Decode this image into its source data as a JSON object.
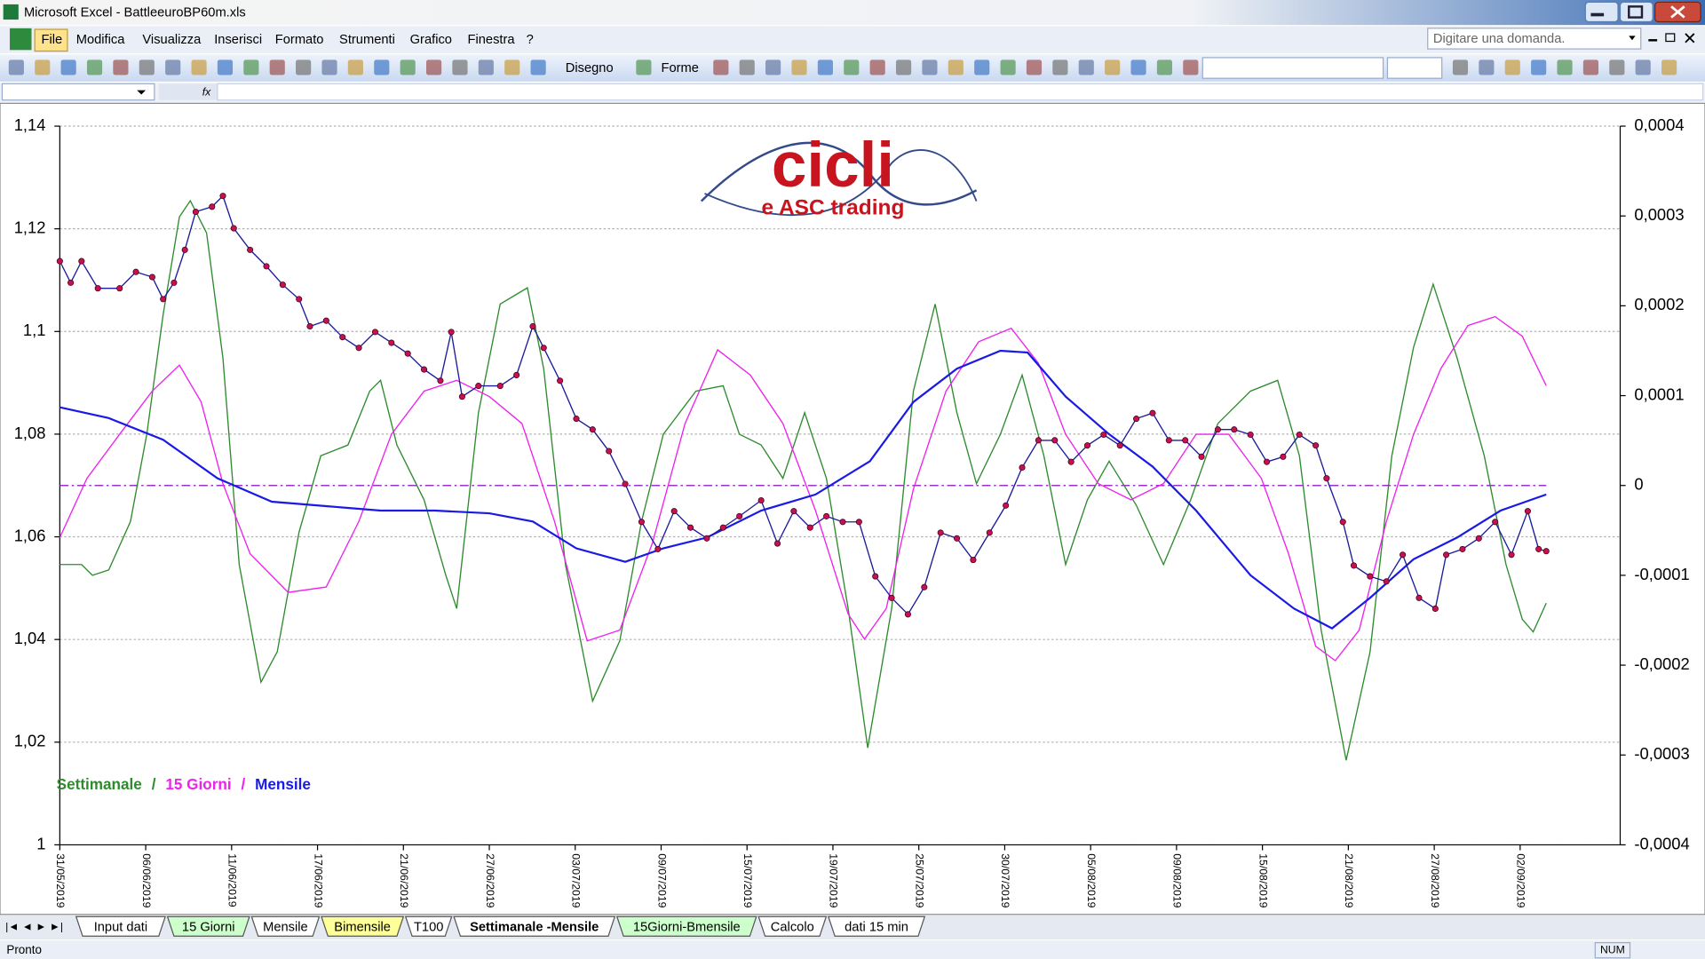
{
  "window": {
    "title": "Microsoft Excel - BattleeuroBP60m.xls"
  },
  "menu": [
    "File",
    "Modifica",
    "Visualizza",
    "Inserisci",
    "Formato",
    "Strumenti",
    "Grafico",
    "Finestra",
    "?"
  ],
  "help_box": "Digitare una domanda.",
  "toolbar": {
    "drawing": "Disegno",
    "shapes": "Forme"
  },
  "sheet_tabs": [
    {
      "name": "Input dati",
      "color": "#ffffff"
    },
    {
      "name": "15 Giorni",
      "color": "#ccffcc"
    },
    {
      "name": "Mensile",
      "color": "#ffffff"
    },
    {
      "name": "Bimensile",
      "color": "#ffff99"
    },
    {
      "name": "T100",
      "color": "#ffffff"
    },
    {
      "name": "Settimanale -Mensile",
      "color": "#ffffff",
      "active": true
    },
    {
      "name": "15Giorni-Bmensile",
      "color": "#ccffcc"
    },
    {
      "name": "Calcolo",
      "color": "#ffffff"
    },
    {
      "name": "dati 15 min",
      "color": "#ffffff"
    }
  ],
  "status": {
    "left": "Pronto",
    "num": "NUM"
  },
  "chart_data": {
    "type": "line",
    "logo": {
      "main": "cicli",
      "sub": "e ASC trading"
    },
    "legend_separator": "/",
    "xlim": [
      0,
      1435
    ],
    "xticks": [
      {
        "value": 0,
        "label": "31/05/2019"
      },
      {
        "value": 79,
        "label": "06/06/2019"
      },
      {
        "value": 158,
        "label": "11/06/2019"
      },
      {
        "value": 237,
        "label": "17/06/2019"
      },
      {
        "value": 316,
        "label": "21/06/2019"
      },
      {
        "value": 395,
        "label": "27/06/2019"
      },
      {
        "value": 474,
        "label": "03/07/2019"
      },
      {
        "value": 553,
        "label": "09/07/2019"
      },
      {
        "value": 632,
        "label": "15/07/2019"
      },
      {
        "value": 711,
        "label": "19/07/2019"
      },
      {
        "value": 790,
        "label": "25/07/2019"
      },
      {
        "value": 869,
        "label": "30/07/2019"
      },
      {
        "value": 948,
        "label": "05/08/2019"
      },
      {
        "value": 1027,
        "label": "09/08/2019"
      },
      {
        "value": 1106,
        "label": "15/08/2019"
      },
      {
        "value": 1185,
        "label": "21/08/2019"
      },
      {
        "value": 1264,
        "label": "27/08/2019"
      },
      {
        "value": 1343,
        "label": "02/09/2019"
      }
    ],
    "ylim": [
      1,
      1.14
    ],
    "yticks": [
      {
        "value": 1,
        "label": "1"
      },
      {
        "value": 1.02,
        "label": "1,02"
      },
      {
        "value": 1.04,
        "label": "1,04"
      },
      {
        "value": 1.06,
        "label": "1,06"
      },
      {
        "value": 1.08,
        "label": "1,08"
      },
      {
        "value": 1.1,
        "label": "1,1"
      },
      {
        "value": 1.12,
        "label": "1,12"
      },
      {
        "value": 1.14,
        "label": "1,14"
      }
    ],
    "y2lim": [
      -0.0004,
      0.0004
    ],
    "y2ticks": [
      {
        "value": -0.0004,
        "label": "-0,0004"
      },
      {
        "value": -0.0003,
        "label": "-0,0003"
      },
      {
        "value": -0.0002,
        "label": "-0,0002"
      },
      {
        "value": -0.0001,
        "label": "-0,0001"
      },
      {
        "value": 0,
        "label": "0"
      },
      {
        "value": 0.0001,
        "label": "0,0001"
      },
      {
        "value": 0.0002,
        "label": "0,0002"
      },
      {
        "value": 0.0003,
        "label": "0,0003"
      },
      {
        "value": 0.0004,
        "label": "0,0004"
      }
    ],
    "grid": true,
    "reference_line": {
      "axis": "y2",
      "value": 0,
      "color": "#9933cc"
    },
    "series": [
      {
        "color": "#1c1c9c",
        "marker_color": "#c8104e",
        "markers": true,
        "x": [
          0,
          10,
          20,
          35,
          55,
          70,
          85,
          95,
          105,
          115,
          125,
          140,
          150,
          160,
          175,
          190,
          205,
          220,
          230,
          245,
          260,
          275,
          290,
          305,
          320,
          335,
          350,
          360,
          370,
          385,
          405,
          420,
          435,
          445,
          460,
          475,
          490,
          505,
          520,
          535,
          550,
          565,
          580,
          595,
          610,
          625,
          645,
          660,
          675,
          690,
          705,
          720,
          735,
          750,
          765,
          780,
          795,
          810,
          825,
          840,
          855,
          870,
          885,
          900,
          915,
          930,
          945,
          960,
          975,
          990,
          1005,
          1020,
          1035,
          1050,
          1065,
          1080,
          1095,
          1110,
          1125,
          1140,
          1155,
          1165,
          1180,
          1190,
          1205,
          1220,
          1235,
          1250,
          1265,
          1275,
          1290,
          1305,
          1320,
          1335,
          1350,
          1360,
          1367
        ],
        "values": [
          1.1137,
          1.1095,
          1.1137,
          1.1084,
          1.1084,
          1.1116,
          1.1106,
          1.1063,
          1.1095,
          1.1159,
          1.1233,
          1.1243,
          1.1264,
          1.1201,
          1.1159,
          1.1127,
          1.1091,
          1.1063,
          1.101,
          1.1021,
          1.0989,
          1.0968,
          1.0999,
          1.0978,
          1.0957,
          1.0926,
          1.0904,
          1.0999,
          1.0873,
          1.0894,
          1.0894,
          1.0915,
          1.101,
          1.0968,
          1.0904,
          1.083,
          1.0809,
          1.0767,
          1.0703,
          1.0629,
          1.0576,
          1.065,
          1.0618,
          1.0597,
          1.0618,
          1.064,
          1.0671,
          1.0587,
          1.065,
          1.0618,
          1.064,
          1.0629,
          1.0629,
          1.0523,
          1.0481,
          1.0449,
          1.0502,
          1.0608,
          1.0597,
          1.0555,
          1.0608,
          1.0661,
          1.0735,
          1.0788,
          1.0788,
          1.0746,
          1.0778,
          1.0799,
          1.0778,
          1.083,
          1.0841,
          1.0788,
          1.0788,
          1.0756,
          1.0809,
          1.0809,
          1.0799,
          1.0746,
          1.0756,
          1.0799,
          1.0778,
          1.0714,
          1.0629,
          1.0544,
          1.0523,
          1.0513,
          1.0565,
          1.0481,
          1.046,
          1.0565,
          1.0576,
          1.0597,
          1.0629,
          1.0565,
          1.065,
          1.0576,
          1.0572
        ]
      },
      {
        "name": "Settimanale",
        "color": "#2e8b2e",
        "axis": "y2",
        "x": [
          0,
          20,
          30,
          45,
          65,
          80,
          95,
          110,
          120,
          135,
          150,
          165,
          185,
          200,
          220,
          240,
          265,
          285,
          295,
          310,
          335,
          355,
          365,
          385,
          405,
          430,
          445,
          465,
          490,
          515,
          535,
          555,
          585,
          610,
          625,
          645,
          665,
          685,
          705,
          725,
          743,
          765,
          785,
          805,
          825,
          843,
          865,
          885,
          905,
          925,
          945,
          965,
          990,
          1015,
          1040,
          1065,
          1095,
          1120,
          1140,
          1160,
          1183,
          1205,
          1225,
          1245,
          1263,
          1285,
          1310,
          1330,
          1345,
          1355,
          1367
        ],
        "values": [
          -8.8e-05,
          -8.8e-05,
          -0.0001,
          -9.4e-05,
          -4e-05,
          5.7e-05,
          0.00019,
          0.000299,
          0.000317,
          0.000281,
          0.000142,
          -8.8e-05,
          -0.000219,
          -0.000185,
          -5.2e-05,
          3.3e-05,
          4.5e-05,
          0.000105,
          0.000117,
          4.5e-05,
          -1.6e-05,
          -0.0001,
          -0.000137,
          8.1e-05,
          0.000202,
          0.00022,
          0.00013,
          -8.8e-05,
          -0.00024,
          -0.000173,
          -4e-05,
          5.7e-05,
          0.000105,
          0.000111,
          5.7e-05,
          4.5e-05,
          8e-06,
          8.1e-05,
          8e-06,
          -0.000137,
          -0.000292,
          -0.000137,
          0.000105,
          0.000202,
          8.1e-05,
          2e-06,
          5.7e-05,
          0.000123,
          3.3e-05,
          -8.8e-05,
          -1.6e-05,
          2.7e-05,
          -2.2e-05,
          -8.8e-05,
          -1.6e-05,
          6.9e-05,
          0.000105,
          0.000117,
          3.3e-05,
          -0.000161,
          -0.000306,
          -0.000185,
          3.3e-05,
          0.000154,
          0.000224,
          0.000142,
          3.3e-05,
          -8.8e-05,
          -0.000149,
          -0.000163,
          -0.000131
        ]
      },
      {
        "name": "15 Giorni",
        "color": "#ee22ee",
        "axis": "y2",
        "x": [
          0,
          25,
          55,
          85,
          110,
          130,
          150,
          175,
          210,
          245,
          275,
          305,
          335,
          365,
          395,
          425,
          455,
          485,
          515,
          545,
          575,
          605,
          635,
          665,
          695,
          725,
          740,
          760,
          785,
          815,
          845,
          875,
          900,
          925,
          955,
          985,
          1015,
          1045,
          1075,
          1105,
          1130,
          1155,
          1173,
          1195,
          1220,
          1245,
          1270,
          1295,
          1320,
          1345,
          1367
        ],
        "values": [
          -5.8e-05,
          8e-06,
          5.7e-05,
          0.000105,
          0.000134,
          9.3e-05,
          2e-06,
          -7.6e-05,
          -0.000119,
          -0.000113,
          -4e-05,
          5.7e-05,
          0.000105,
          0.000117,
          9.9e-05,
          6.9e-05,
          -4e-05,
          -0.000173,
          -0.000161,
          -6.4e-05,
          6.9e-05,
          0.000151,
          0.000123,
          6.9e-05,
          -2.8e-05,
          -0.000143,
          -0.000171,
          -0.000137,
          -4e-06,
          0.000105,
          0.00016,
          0.000175,
          0.000136,
          5.7e-05,
          2e-06,
          -1.6e-05,
          2e-06,
          5.7e-05,
          5.7e-05,
          8e-06,
          -7.6e-05,
          -0.000179,
          -0.000195,
          -0.000161,
          -4e-05,
          5.7e-05,
          0.00013,
          0.000178,
          0.000188,
          0.000166,
          0.000111
        ]
      },
      {
        "name": "Mensile",
        "color": "#1a1ae6",
        "axis": "y2",
        "x": [
          0,
          45,
          95,
          145,
          195,
          245,
          295,
          345,
          395,
          435,
          475,
          520,
          555,
          595,
          645,
          695,
          745,
          785,
          825,
          865,
          890,
          925,
          965,
          1005,
          1045,
          1095,
          1135,
          1170,
          1205,
          1245,
          1285,
          1325,
          1367
        ],
        "values": [
          8.7e-05,
          7.5e-05,
          5.1e-05,
          8e-06,
          -1.8e-05,
          -2.3e-05,
          -2.8e-05,
          -2.8e-05,
          -3.1e-05,
          -4e-05,
          -7e-05,
          -8.5e-05,
          -7e-05,
          -5.8e-05,
          -2.8e-05,
          -1e-05,
          2.7e-05,
          9.3e-05,
          0.00013,
          0.00015,
          0.000148,
          9.9e-05,
          5.7e-05,
          2.1e-05,
          -2.8e-05,
          -0.0001,
          -0.000137,
          -0.000159,
          -0.000125,
          -8.2e-05,
          -5.8e-05,
          -2.8e-05,
          -1e-05
        ]
      }
    ]
  }
}
